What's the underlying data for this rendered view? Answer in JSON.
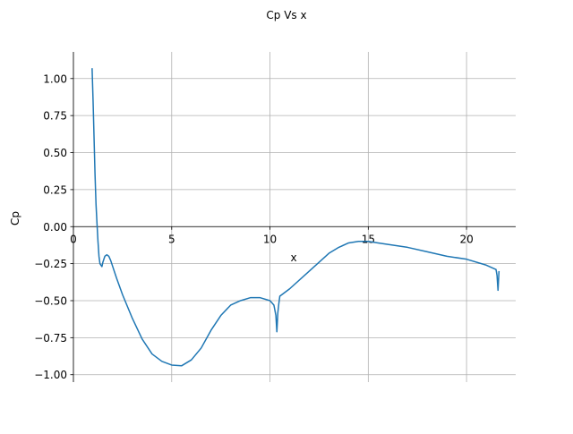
{
  "chart_data": {
    "type": "line",
    "title": "Cp Vs x",
    "xlabel": "x",
    "ylabel": "Cp",
    "xlim": [
      0,
      22.5
    ],
    "ylim": [
      -1.05,
      1.18
    ],
    "xticks": [
      0,
      5,
      10,
      15,
      20
    ],
    "yticks": [
      1.0,
      0.75,
      0.5,
      0.25,
      0.0,
      -0.25,
      -0.5,
      -0.75,
      -1.0
    ],
    "xtick_labels": [
      "0",
      "5",
      "10",
      "15",
      "20"
    ],
    "ytick_labels": [
      "1.00",
      "0.75",
      "0.50",
      "0.25",
      "0.00",
      "−0.25",
      "−0.50",
      "−0.75",
      "−1.00"
    ],
    "grid": true,
    "series": [
      {
        "color": "#1f77b4",
        "x": [
          0.95,
          1.0,
          1.05,
          1.1,
          1.15,
          1.2,
          1.25,
          1.3,
          1.35,
          1.4,
          1.45,
          1.5,
          1.55,
          1.6,
          1.7,
          1.8,
          1.9,
          2.0,
          2.2,
          2.5,
          3.0,
          3.5,
          4.0,
          4.5,
          5.0,
          5.5,
          6.0,
          6.5,
          7.0,
          7.5,
          8.0,
          8.5,
          9.0,
          9.5,
          10.0,
          10.2,
          10.3,
          10.35,
          10.4,
          10.45,
          10.5,
          11.0,
          12.0,
          13.0,
          13.5,
          14.0,
          14.5,
          15.0,
          15.5,
          16.0,
          17.0,
          18.0,
          19.0,
          20.0,
          21.0,
          21.5,
          21.55,
          21.6,
          21.65
        ],
        "y": [
          1.07,
          0.85,
          0.6,
          0.35,
          0.15,
          0.02,
          -0.1,
          -0.2,
          -0.25,
          -0.26,
          -0.27,
          -0.24,
          -0.22,
          -0.2,
          -0.19,
          -0.2,
          -0.23,
          -0.27,
          -0.35,
          -0.46,
          -0.62,
          -0.76,
          -0.86,
          -0.91,
          -0.935,
          -0.94,
          -0.9,
          -0.82,
          -0.7,
          -0.6,
          -0.53,
          -0.5,
          -0.48,
          -0.48,
          -0.5,
          -0.53,
          -0.6,
          -0.71,
          -0.58,
          -0.52,
          -0.47,
          -0.42,
          -0.3,
          -0.18,
          -0.14,
          -0.11,
          -0.1,
          -0.1,
          -0.11,
          -0.12,
          -0.14,
          -0.17,
          -0.2,
          -0.22,
          -0.26,
          -0.29,
          -0.33,
          -0.43,
          -0.3
        ]
      }
    ]
  }
}
